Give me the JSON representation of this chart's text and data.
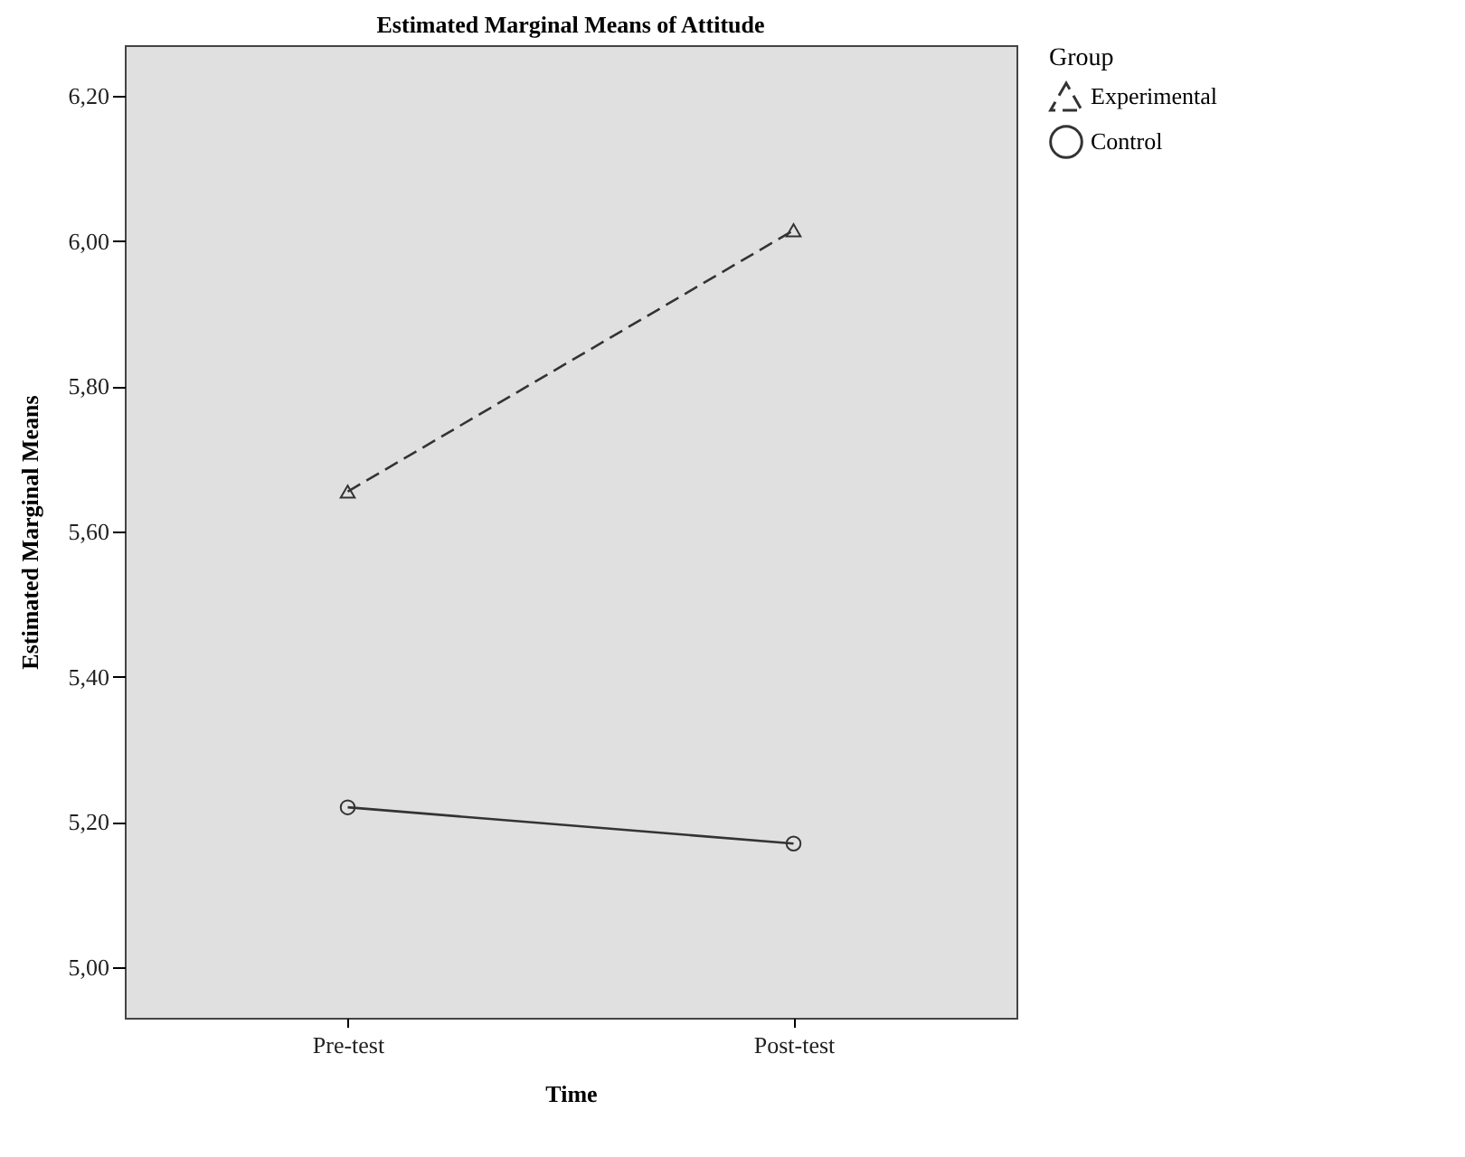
{
  "chart_data": {
    "type": "line",
    "title": "Estimated Marginal Means of Attitude",
    "xlabel": "Time",
    "ylabel": "Estimated Marginal Means",
    "legend_title": "Group",
    "categories": [
      "Pre-test",
      "Post-test"
    ],
    "series": [
      {
        "name": "Experimental",
        "color": "#333333",
        "values": [
          5.655,
          6.015
        ],
        "marker": "triangle",
        "line_style": "dashed"
      },
      {
        "name": "Control",
        "color": "#333333",
        "values": [
          5.22,
          5.17
        ],
        "marker": "circle",
        "line_style": "solid"
      }
    ],
    "ylim": [
      4.93,
      6.27
    ],
    "yticks": [
      {
        "value": 5.0,
        "label": "5,00"
      },
      {
        "value": 5.2,
        "label": "5,20"
      },
      {
        "value": 5.4,
        "label": "5,40"
      },
      {
        "value": 5.6,
        "label": "5,60"
      },
      {
        "value": 5.8,
        "label": "5,80"
      },
      {
        "value": 6.0,
        "label": "6,00"
      },
      {
        "value": 6.2,
        "label": "6,20"
      }
    ],
    "grid": false,
    "legend": "top right"
  }
}
